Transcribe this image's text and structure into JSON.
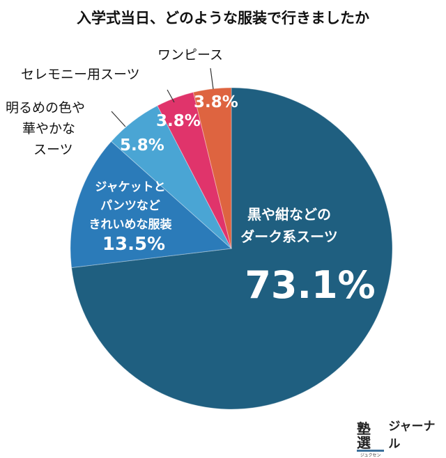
{
  "chart_data": {
    "type": "pie",
    "title": "入学式当日、どのような服装で行きましたか",
    "start_angle": "top",
    "direction": "clockwise",
    "slices": [
      {
        "label": "黒や紺などのダーク系スーツ",
        "label_lines": [
          "黒や紺などの",
          "ダーク系スーツ"
        ],
        "value": 73.1,
        "value_label": "73.1%",
        "color": "#1f5f80"
      },
      {
        "label": "ジャケットとパンツなどきれいめな服装",
        "label_lines": [
          "ジャケットと",
          "パンツなど",
          "きれいめな服装"
        ],
        "value": 13.5,
        "value_label": "13.5%",
        "color": "#2b7bb9"
      },
      {
        "label": "明るめの色や華やかなスーツ",
        "label_lines": [
          "明るめの色や",
          "華やかな",
          "スーツ"
        ],
        "value": 5.8,
        "value_label": "5.8%",
        "color": "#4aa5d4"
      },
      {
        "label": "セレモニー用スーツ",
        "label_lines": [
          "セレモニー用スーツ"
        ],
        "value": 3.8,
        "value_label": "3.8%",
        "color": "#e0346b"
      },
      {
        "label": "ワンピース",
        "label_lines": [
          "ワンピース"
        ],
        "value": 3.8,
        "value_label": "3.8%",
        "color": "#de6440"
      }
    ]
  },
  "logo": {
    "text": "塾選",
    "ruby": "ジュクセン",
    "suffix": "ジャーナル"
  }
}
